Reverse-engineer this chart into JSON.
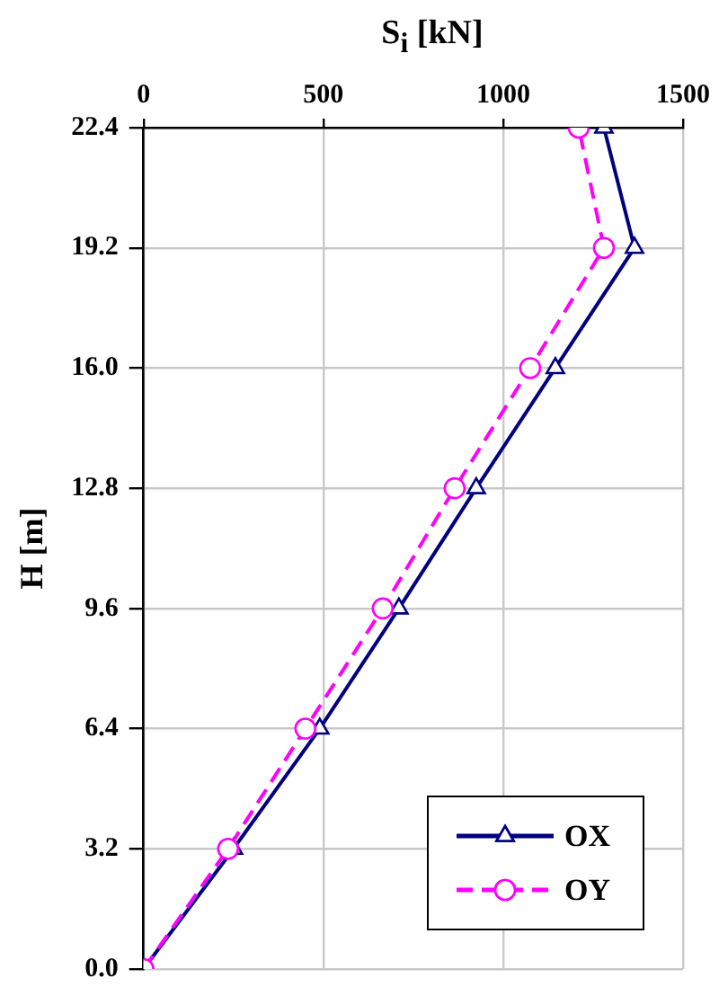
{
  "chart_data": {
    "type": "line",
    "xlabel": "S$_{i}$ [kN]",
    "ylabel": "H [m]",
    "xlim": [
      0,
      1500
    ],
    "xticks": [
      0,
      500,
      1000,
      1500
    ],
    "ylim": [
      0,
      22.4
    ],
    "yticks": [
      {
        "value": 0,
        "label": "0.0"
      },
      3.2,
      6.4,
      9.6,
      12.8,
      {
        "value": 16,
        "label": "16.0"
      },
      19.2,
      22.4
    ],
    "grid": true,
    "legend": "bottom right",
    "series": [
      {
        "name": "OX",
        "color": "#000080",
        "marker": "triangle",
        "line_style": "solid",
        "x": [
          0,
          250,
          490,
          710,
          925,
          1145,
          1365,
          1280
        ],
        "values": [
          0,
          3.2,
          6.4,
          9.6,
          12.8,
          16.0,
          19.2,
          22.4
        ]
      },
      {
        "name": "OY",
        "color": "#ff00ff",
        "marker": "circle",
        "line_style": "dashed",
        "x": [
          0,
          235,
          450,
          665,
          865,
          1075,
          1280,
          1210
        ],
        "values": [
          0,
          3.2,
          6.4,
          9.6,
          12.8,
          16.0,
          19.2,
          22.4
        ]
      }
    ]
  }
}
